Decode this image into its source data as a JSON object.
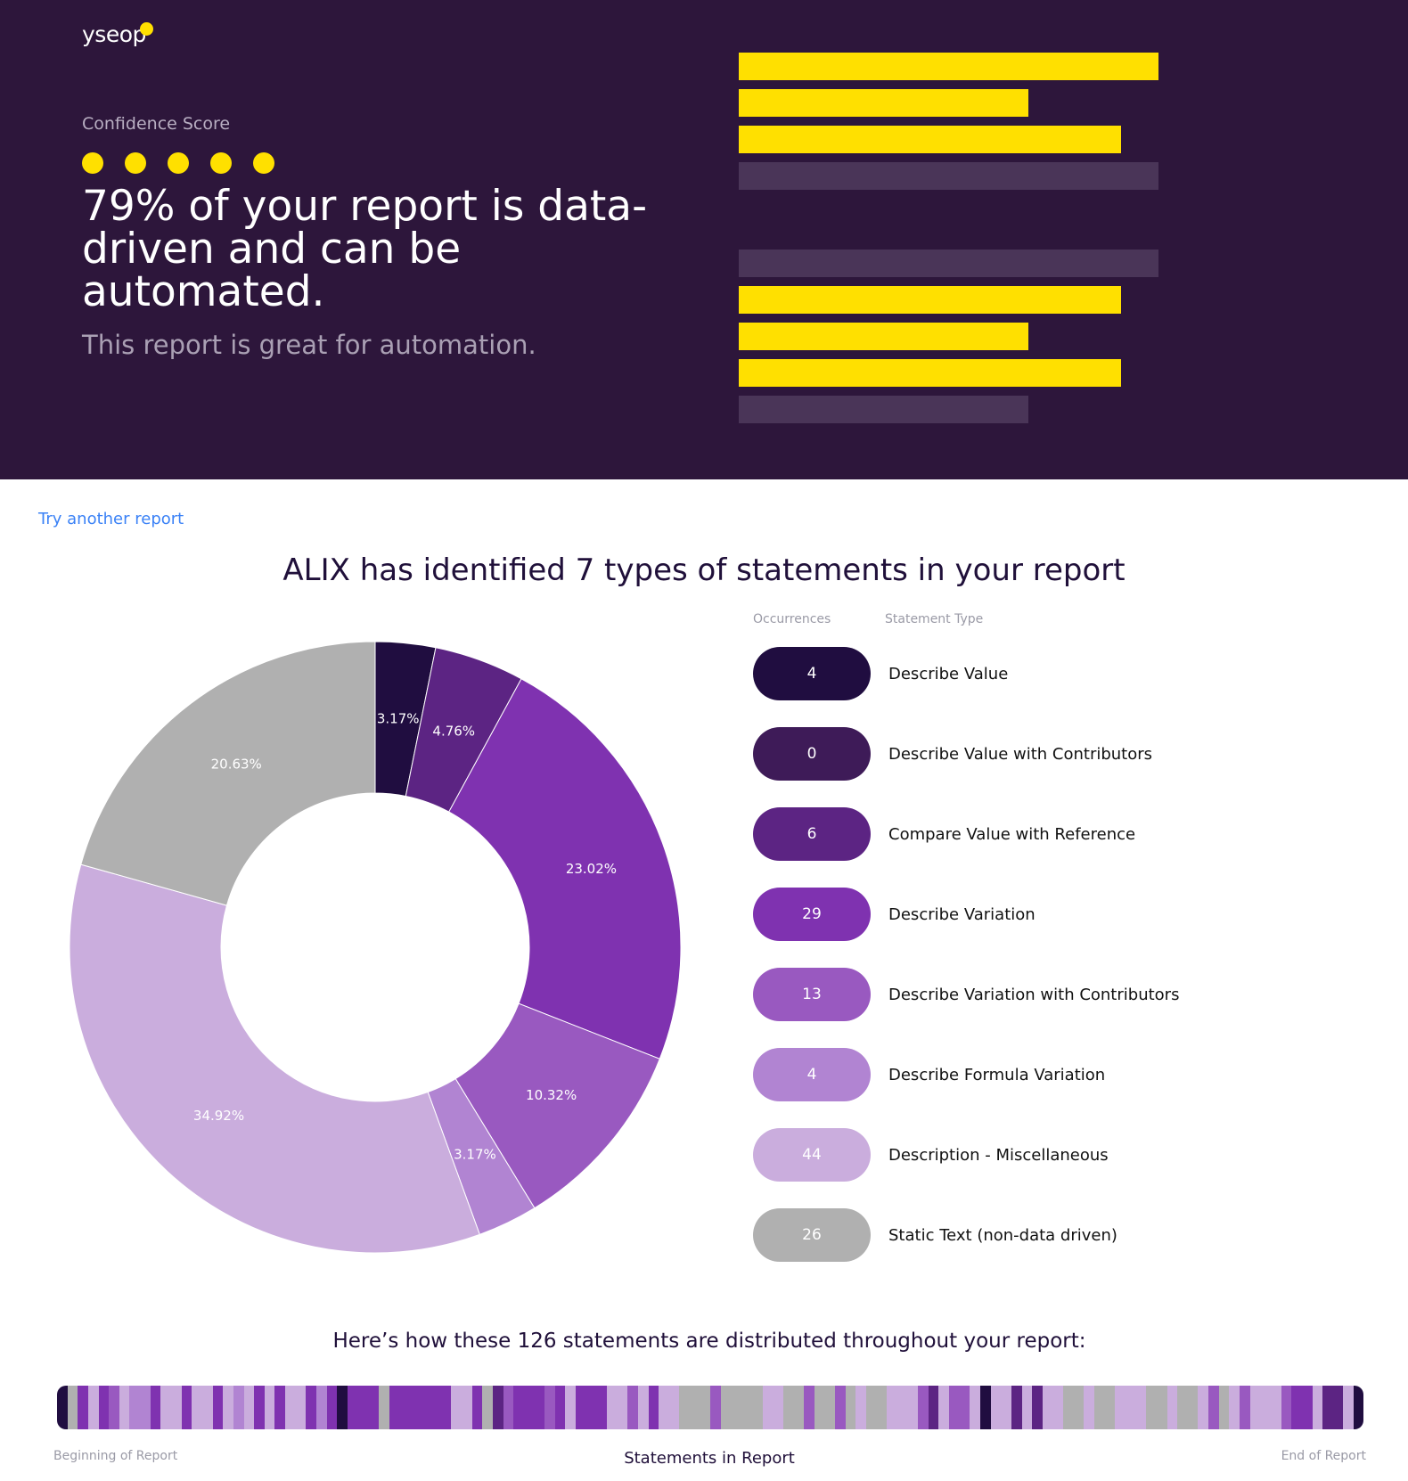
{
  "hero": {
    "logo": "yseop",
    "confidence_label": "Confidence Score",
    "confidence_score": 5,
    "confidence_max": 5,
    "headline": "79% of your report is data-driven and can be automated.",
    "subtitle": "This report is great for automation.",
    "accent": "#ffe000",
    "decor_bars": [
      {
        "fill": 1.0,
        "highlight": true
      },
      {
        "fill": 0.69,
        "highlight": true
      },
      {
        "fill": 0.91,
        "highlight": true
      },
      {
        "fill": 1.0,
        "highlight": false
      },
      null,
      {
        "fill": 1.0,
        "highlight": false
      },
      {
        "fill": 0.91,
        "highlight": true
      },
      {
        "fill": 0.69,
        "highlight": true
      },
      {
        "fill": 0.91,
        "highlight": true
      },
      {
        "fill": 0.69,
        "highlight": false
      }
    ]
  },
  "link_try": "Try another report",
  "title": "ALIX has identified 7 types of statements in your report",
  "legend_headers": {
    "occurrences": "Occurrences",
    "type": "Statement Type"
  },
  "chart_data": {
    "type": "pie",
    "donut": true,
    "total": 126,
    "categories": [
      "Describe Value",
      "Describe Value with Contributors",
      "Compare Value with Reference",
      "Describe Variation",
      "Describe Variation with Contributors",
      "Describe Formula Variation",
      "Description - Miscellaneous",
      "Static Text (non-data driven)"
    ],
    "values": [
      4,
      0,
      6,
      29,
      13,
      4,
      44,
      26
    ],
    "labels": [
      "3.17%",
      "",
      "4.76%",
      "23.02%",
      "10.32%",
      "3.17%",
      "34.92%",
      "20.63%"
    ],
    "colors": [
      "#200d40",
      "#3e1b58",
      "#5c2483",
      "#7f32b0",
      "#9959c0",
      "#b184d2",
      "#caaddd",
      "#b0b0b0"
    ]
  },
  "distribution": {
    "title": "Here’s how these 126 statements are distributed throughout your report:",
    "sequence": "0736346553663663656363663530333733333366372433343633366463667774777766774774767766642644606626266776776667767764764666433622 60",
    "start_label": "Beginning of Report",
    "axis_label": "Statements in Report",
    "end_label": "End of Report"
  }
}
